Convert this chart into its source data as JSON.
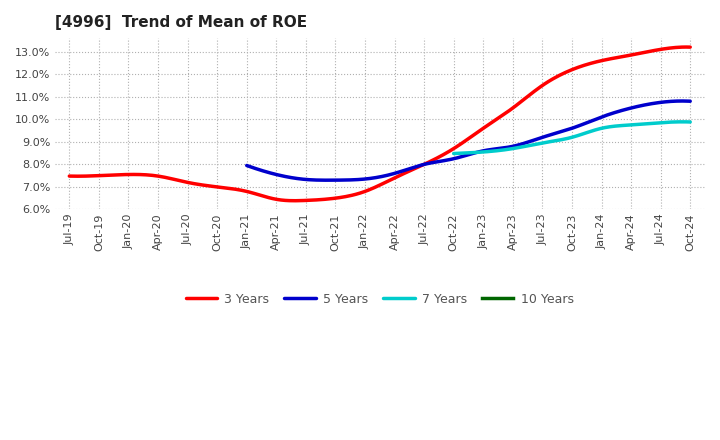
{
  "title": "[4996]  Trend of Mean of ROE",
  "background_color": "#ffffff",
  "plot_background_color": "#ffffff",
  "grid_color": "#b0b0b0",
  "ylim": [
    0.06,
    0.136
  ],
  "yticks": [
    0.06,
    0.07,
    0.08,
    0.09,
    0.1,
    0.11,
    0.12,
    0.13
  ],
  "ytick_labels": [
    "6.0%",
    "7.0%",
    "8.0%",
    "9.0%",
    "10.0%",
    "11.0%",
    "12.0%",
    "13.0%"
  ],
  "x_labels": [
    "Jul-19",
    "Oct-19",
    "Jan-20",
    "Apr-20",
    "Jul-20",
    "Oct-20",
    "Jan-21",
    "Apr-21",
    "Jul-21",
    "Oct-21",
    "Jan-22",
    "Apr-22",
    "Jul-22",
    "Oct-22",
    "Jan-23",
    "Apr-23",
    "Jul-23",
    "Oct-23",
    "Jan-24",
    "Apr-24",
    "Jul-24",
    "Oct-24"
  ],
  "series": [
    {
      "name": "3 Years",
      "color": "#ff0000",
      "linewidth": 2.5,
      "data_x": [
        0,
        1,
        2,
        3,
        4,
        5,
        6,
        7,
        8,
        9,
        10,
        11,
        12,
        13,
        14,
        15,
        16,
        17,
        18,
        19,
        20,
        21
      ],
      "data_y": [
        0.0748,
        0.075,
        0.0755,
        0.0748,
        0.072,
        0.07,
        0.068,
        0.0645,
        0.064,
        0.065,
        0.068,
        0.074,
        0.08,
        0.087,
        0.096,
        0.105,
        0.115,
        0.122,
        0.126,
        0.1285,
        0.131,
        0.132
      ]
    },
    {
      "name": "5 Years",
      "color": "#0000cc",
      "linewidth": 2.5,
      "data_x": [
        6,
        7,
        8,
        9,
        10,
        11,
        12,
        13,
        14,
        15,
        16,
        17,
        18,
        19,
        20,
        21
      ],
      "data_y": [
        0.0795,
        0.0755,
        0.0733,
        0.073,
        0.0735,
        0.076,
        0.08,
        0.0825,
        0.086,
        0.088,
        0.092,
        0.096,
        0.101,
        0.105,
        0.1075,
        0.108
      ]
    },
    {
      "name": "7 Years",
      "color": "#00cccc",
      "linewidth": 2.5,
      "data_x": [
        13,
        14,
        15,
        16,
        17,
        18,
        19,
        20,
        21
      ],
      "data_y": [
        0.0848,
        0.0855,
        0.087,
        0.0895,
        0.092,
        0.096,
        0.0975,
        0.0985,
        0.0988
      ]
    },
    {
      "name": "10 Years",
      "color": "#006600",
      "linewidth": 2.5,
      "data_x": [],
      "data_y": []
    }
  ],
  "title_fontsize": 11,
  "tick_fontsize": 8,
  "legend_fontsize": 9
}
